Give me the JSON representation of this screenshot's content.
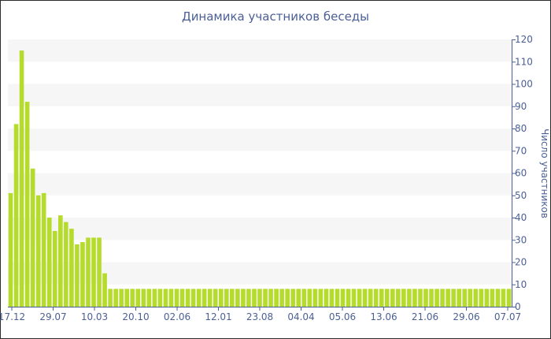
{
  "chart_data": {
    "type": "bar",
    "title": "Динамика участников беседы",
    "xlabel": "",
    "ylabel": "Число участников",
    "ylim": [
      0,
      120
    ],
    "yticks": [
      0,
      10,
      20,
      30,
      40,
      50,
      60,
      70,
      80,
      90,
      100,
      110,
      120
    ],
    "xtick_labels": [
      "17.12",
      "29.07",
      "10.03",
      "20.10",
      "02.06",
      "12.01",
      "23.08",
      "04.04",
      "05.06",
      "13.06",
      "21.06",
      "29.06",
      "07.07"
    ],
    "grid": "horizontal bands",
    "bar_color": "#b5dc2c",
    "band_color": "#f6f6f6",
    "text_color": "#4a5f95",
    "values": [
      51,
      82,
      115,
      92,
      62,
      50,
      51,
      40,
      34,
      41,
      38,
      35,
      28,
      29,
      31,
      31,
      31,
      15,
      8,
      8,
      8,
      8,
      8,
      8,
      8,
      8,
      8,
      8,
      8,
      8,
      8,
      8,
      8,
      8,
      8,
      8,
      8,
      8,
      8,
      8,
      8,
      8,
      8,
      8,
      8,
      8,
      8,
      8,
      8,
      8,
      8,
      8,
      8,
      8,
      8,
      8,
      8,
      8,
      8,
      8,
      8,
      8,
      8,
      8,
      8,
      8,
      8,
      8,
      8,
      8,
      8,
      8,
      8,
      8,
      8,
      8,
      8,
      8,
      8,
      8,
      8,
      8,
      8,
      8,
      8,
      8,
      8,
      8,
      8,
      8,
      8
    ]
  }
}
